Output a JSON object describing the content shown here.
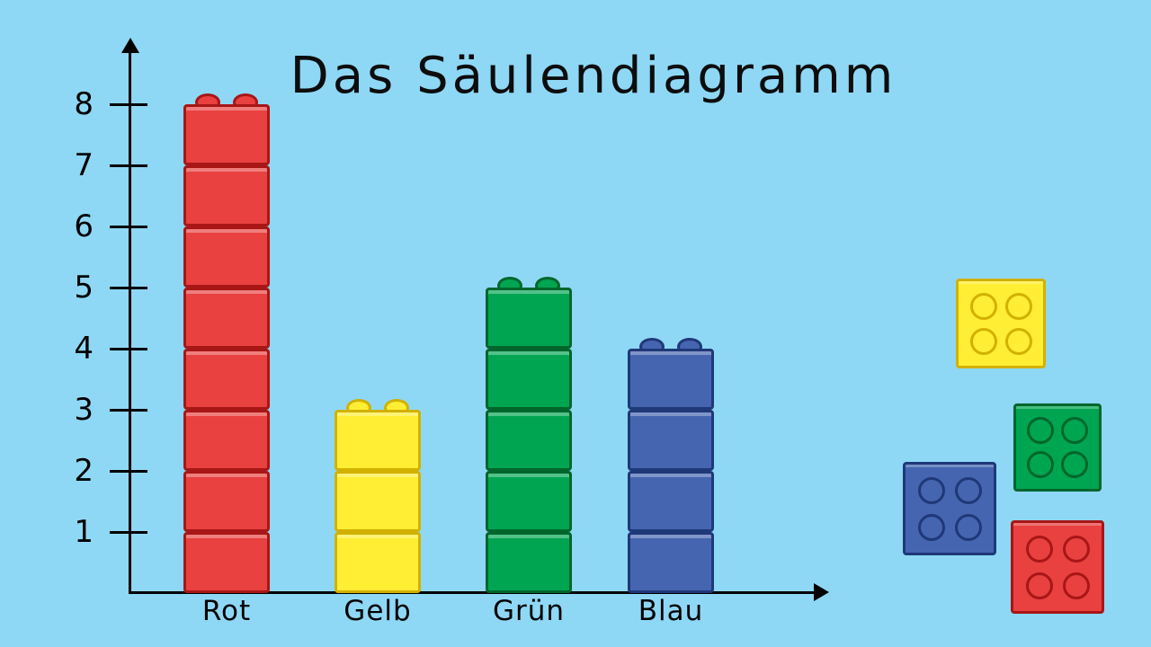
{
  "title": "Das Säulendiagramm",
  "chart_data": {
    "type": "bar",
    "title": "Das Säulendiagramm",
    "categories": [
      "Rot",
      "Gelb",
      "Grün",
      "Blau"
    ],
    "values": [
      8,
      3,
      5,
      4
    ],
    "bar_colors": [
      "red",
      "yellow",
      "green",
      "blue"
    ],
    "yticks": [
      1,
      2,
      3,
      4,
      5,
      6,
      7,
      8
    ],
    "ylim": [
      0,
      8.8
    ],
    "xlabel": "",
    "ylabel": "",
    "grid": false,
    "legend": false,
    "bar_style": "stacked-lego-bricks",
    "brick_unit": 1
  },
  "palette": {
    "background": "#8ed8f5",
    "axis": "#000000",
    "red": {
      "fill": "#e84140",
      "edge": "#a81616"
    },
    "yellow": {
      "fill": "#ffee33",
      "edge": "#d2b100"
    },
    "green": {
      "fill": "#00a551",
      "edge": "#00662c"
    },
    "blue": {
      "fill": "#4565b0",
      "edge": "#1f3878"
    }
  },
  "loose_bricks": [
    {
      "color": "yellow",
      "studs": 4
    },
    {
      "color": "green",
      "studs": 4
    },
    {
      "color": "blue",
      "studs": 4
    },
    {
      "color": "red",
      "studs": 4
    }
  ]
}
